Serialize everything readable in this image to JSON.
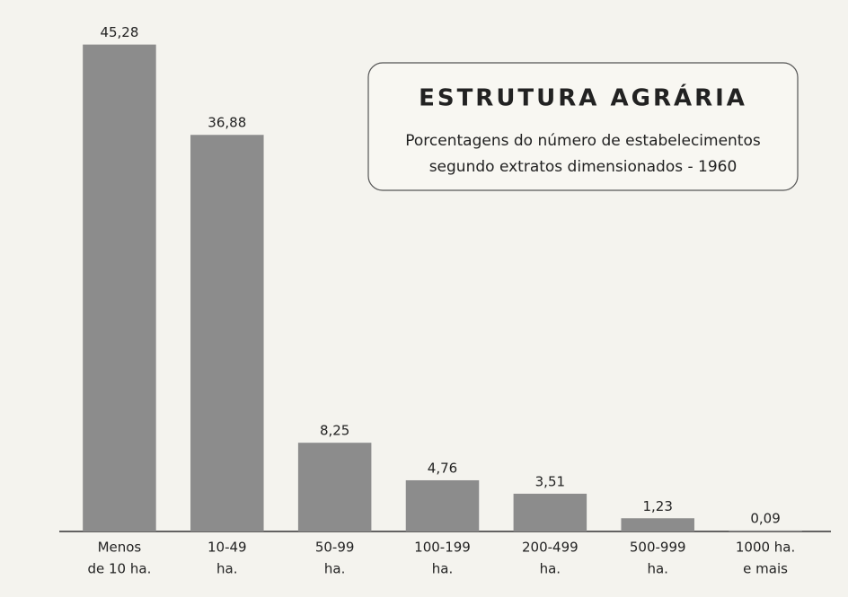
{
  "chart_data": {
    "type": "bar",
    "title": "ESTRUTURA AGRÁRIA",
    "subtitle": [
      "Porcentagens do número de estabelecimentos",
      "segundo extratos dimensionados - 1960"
    ],
    "categories": [
      [
        "Menos",
        "de 10 ha."
      ],
      [
        "10-49",
        "ha."
      ],
      [
        "50-99",
        "ha."
      ],
      [
        "100-199",
        "ha."
      ],
      [
        "200-499",
        "ha."
      ],
      [
        "500-999",
        "ha."
      ],
      [
        "1000 ha.",
        "e mais"
      ]
    ],
    "values": [
      45.28,
      36.88,
      8.25,
      4.76,
      3.51,
      1.23,
      0.09
    ],
    "value_labels": [
      "45,28",
      "36,88",
      "8,25",
      "4,76",
      "3,51",
      "1,23",
      "0,09"
    ],
    "color": "#8c8c8c",
    "ylim": [
      0,
      46
    ]
  }
}
